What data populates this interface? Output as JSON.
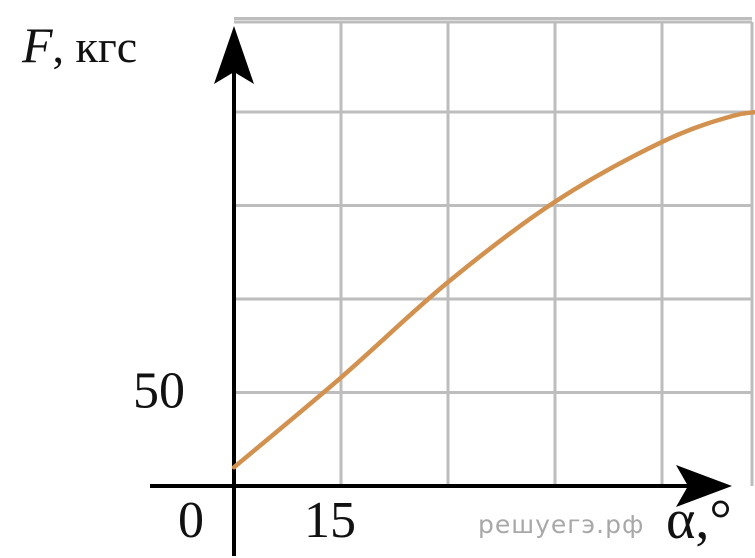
{
  "chart_data": {
    "type": "line",
    "xlabel": "α,°",
    "ylabel": {
      "symbol": "F",
      "unit": ", кгс"
    },
    "x_tick_labels": [
      {
        "value": 0,
        "text": "0"
      },
      {
        "value": 15,
        "text": "15"
      }
    ],
    "y_tick_labels": [
      {
        "value": 50,
        "text": "50"
      }
    ],
    "x_grid_step": 15,
    "y_grid_step": 50,
    "xlim": [
      0,
      75
    ],
    "ylim": [
      0,
      250
    ],
    "grid": true,
    "series": [
      {
        "color": "#d2914e",
        "points": [
          {
            "x": 0,
            "y": 10
          },
          {
            "x": 15,
            "y": 58
          },
          {
            "x": 30,
            "y": 109
          },
          {
            "x": 45,
            "y": 152
          },
          {
            "x": 60,
            "y": 184
          },
          {
            "x": 70,
            "y": 198
          },
          {
            "x": 75,
            "y": 200
          }
        ]
      }
    ],
    "watermark": "решуегэ.рф"
  }
}
